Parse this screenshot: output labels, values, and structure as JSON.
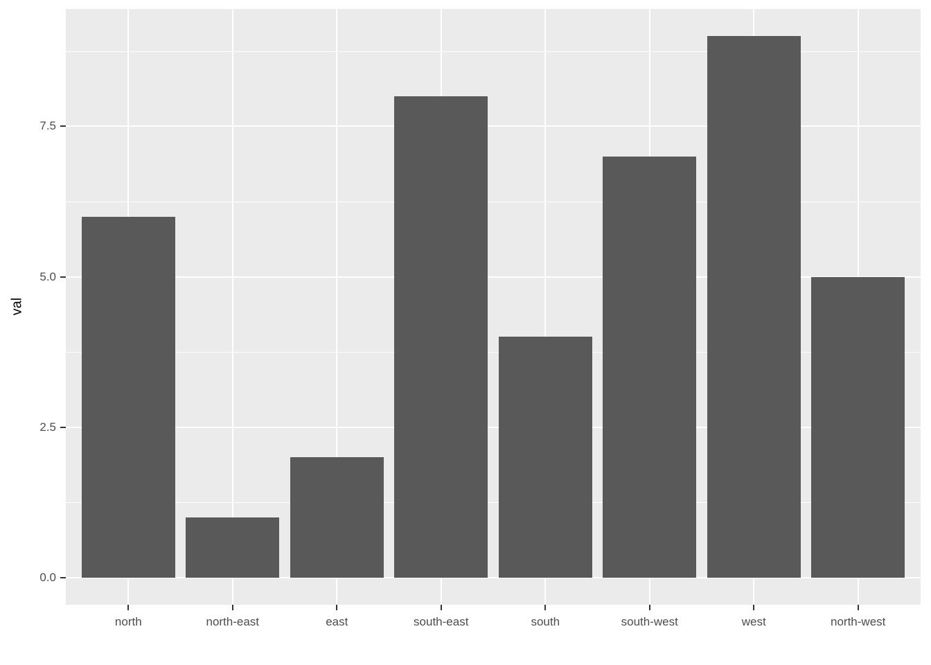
{
  "chart_data": {
    "type": "bar",
    "categories": [
      "north",
      "north-east",
      "east",
      "south-east",
      "south",
      "south-west",
      "west",
      "north-west"
    ],
    "values": [
      6,
      1,
      2,
      8,
      4,
      7,
      9,
      5
    ],
    "title": "",
    "xlabel": "",
    "ylabel": "val",
    "ylim": [
      -0.45,
      9.45
    ],
    "yticks": {
      "values": [
        0,
        2.5,
        5,
        7.5
      ],
      "labels": [
        "0.0",
        "2.5",
        "5.0",
        "7.5"
      ]
    },
    "minor_gridlines": [
      1.25,
      3.75,
      6.25,
      8.75
    ],
    "grid": "on",
    "legend_position": "none",
    "colors": {
      "bar_fill": "#595959",
      "panel_background": "#EBEBEB",
      "gridline": "#FFFFFF",
      "axis_text": "#4D4D4D",
      "axis_title": "#000000",
      "tick_mark": "#333333",
      "figure_background": "#FFFFFF"
    }
  }
}
